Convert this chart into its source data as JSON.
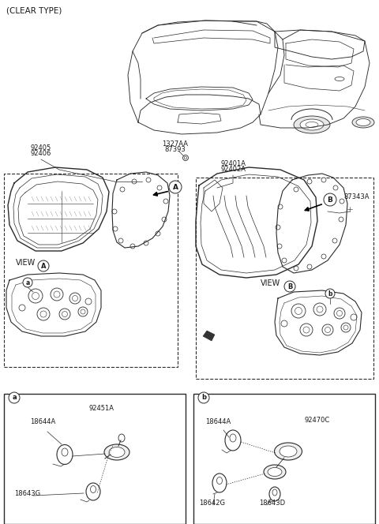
{
  "bg_color": "#ffffff",
  "line_color": "#2a2a2a",
  "text_color": "#1a1a1a",
  "fs": 6.0,
  "fs_label": 7.0,
  "labels": {
    "clear_type": "(CLEAR TYPE)",
    "l_1327AA": "1327AA",
    "l_87393": "87393",
    "l_92405": "92405",
    "l_92406": "92406",
    "l_92401A": "92401A",
    "l_92402A": "92402A",
    "l_87343A": "87343A",
    "view_A": "VIEW",
    "view_B": "VIEW",
    "circ_A": "A",
    "circ_B": "B",
    "sm_a": "a",
    "sm_b": "b",
    "p_92451A": "92451A",
    "p_18644A": "18644A",
    "p_18643G": "18643G",
    "p_18644A_b": "18644A",
    "p_92470C": "92470C",
    "p_18642G": "18642G",
    "p_18643D": "18643D"
  }
}
